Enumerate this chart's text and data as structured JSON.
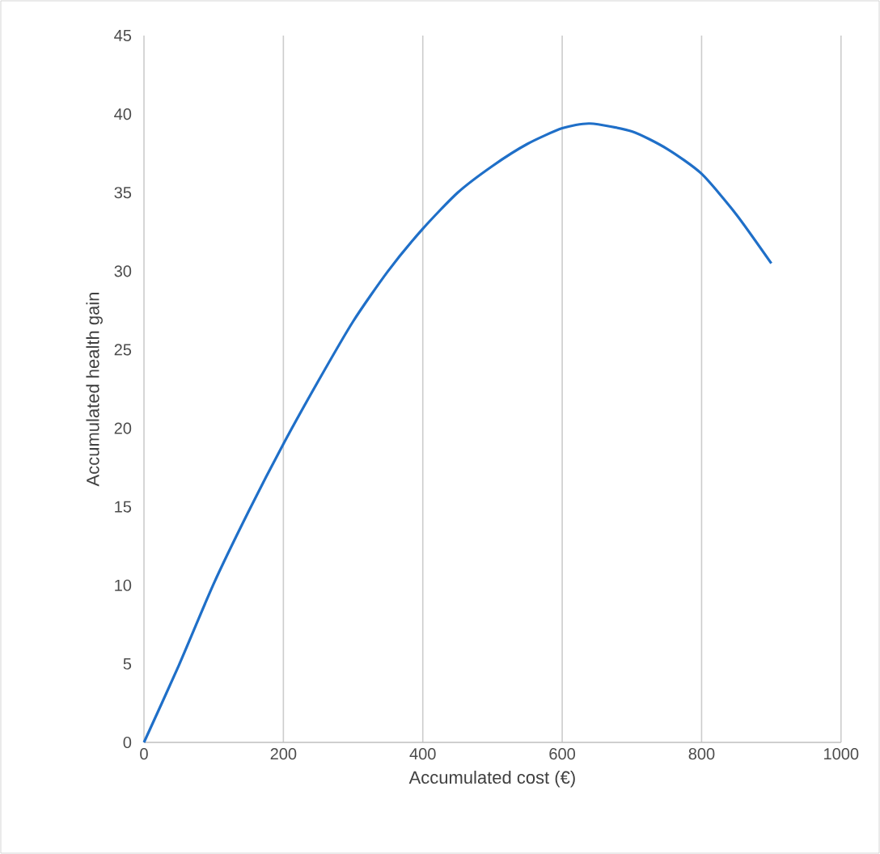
{
  "chart_data": {
    "type": "line",
    "xlabel": "Accumulated cost (€)",
    "ylabel": "Accumulated health gain",
    "x": [
      0,
      50,
      100,
      150,
      200,
      250,
      300,
      350,
      400,
      450,
      500,
      550,
      600,
      640,
      700,
      750,
      800,
      850,
      900
    ],
    "series": [
      {
        "color": "#1f6fc8",
        "values": [
          0,
          4.9,
          10.1,
          14.7,
          19.0,
          23.0,
          26.8,
          30.0,
          32.7,
          35.0,
          36.7,
          38.1,
          39.1,
          39.4,
          38.9,
          37.8,
          36.2,
          33.6,
          30.5
        ]
      }
    ],
    "xlim": [
      0,
      1000
    ],
    "xticks": [
      0,
      200,
      400,
      600,
      800,
      1000
    ],
    "ylim": [
      0,
      45
    ],
    "yticks": [
      0,
      5,
      10,
      15,
      20,
      25,
      30,
      35,
      40,
      45
    ],
    "grid": "x",
    "marker": "none",
    "line_style": "solid"
  }
}
